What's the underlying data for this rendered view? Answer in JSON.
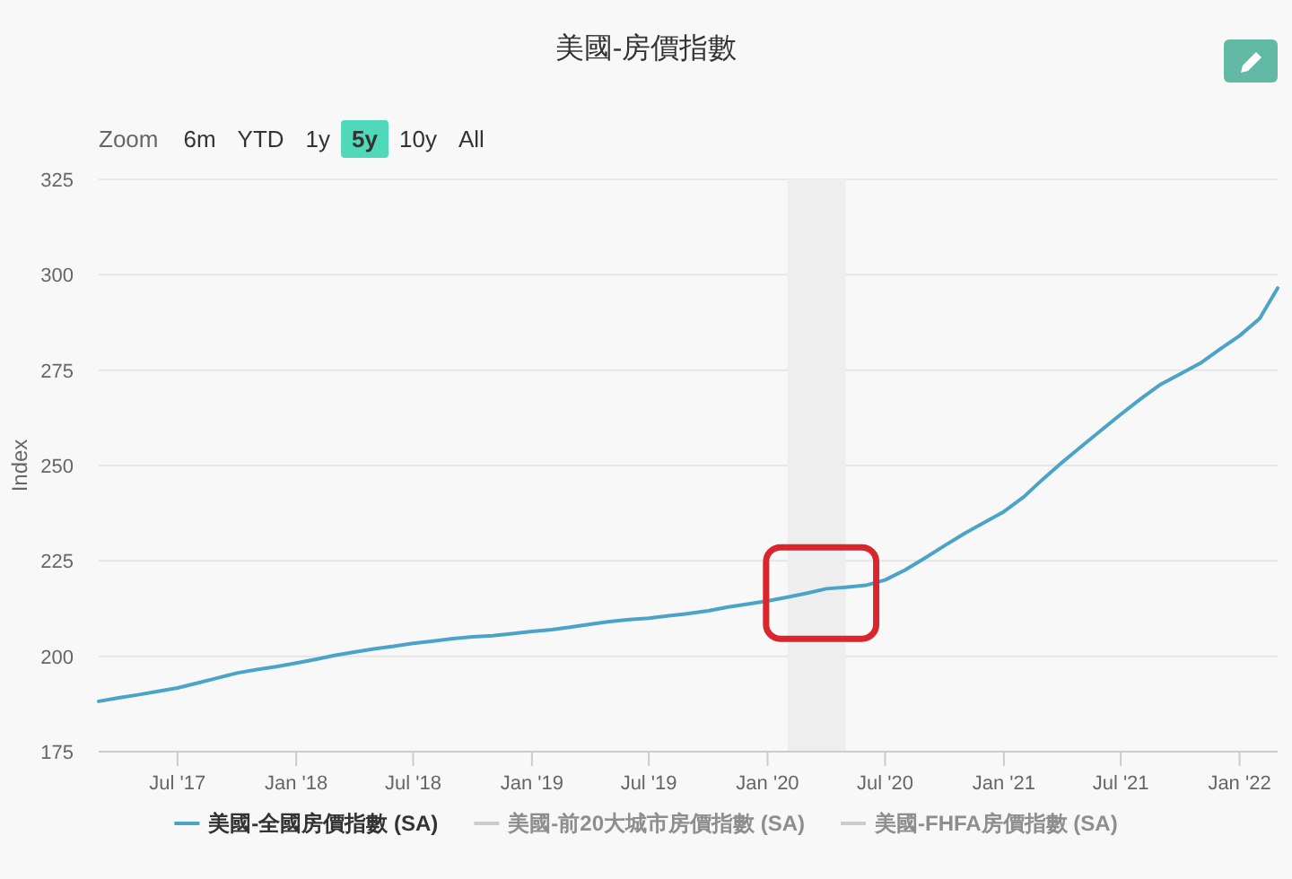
{
  "chart_data": {
    "type": "line",
    "title": "美國-房價指數",
    "ylabel": "Index",
    "annotations": [
      "Zoom",
      "6m",
      "YTD",
      "1y",
      "5y",
      "10y",
      "All"
    ],
    "x": [
      "2017-03",
      "2017-04",
      "2017-05",
      "2017-06",
      "2017-07",
      "2017-08",
      "2017-09",
      "2017-10",
      "2017-11",
      "2017-12",
      "2018-01",
      "2018-02",
      "2018-03",
      "2018-04",
      "2018-05",
      "2018-06",
      "2018-07",
      "2018-08",
      "2018-09",
      "2018-10",
      "2018-11",
      "2018-12",
      "2019-01",
      "2019-02",
      "2019-03",
      "2019-04",
      "2019-05",
      "2019-06",
      "2019-07",
      "2019-08",
      "2019-09",
      "2019-10",
      "2019-11",
      "2019-12",
      "2020-01",
      "2020-02",
      "2020-03",
      "2020-04",
      "2020-05",
      "2020-06",
      "2020-07",
      "2020-08",
      "2020-09",
      "2020-10",
      "2020-11",
      "2020-12",
      "2021-01",
      "2021-02",
      "2021-03",
      "2021-04",
      "2021-05",
      "2021-06",
      "2021-07",
      "2021-08",
      "2021-09",
      "2021-10",
      "2021-11",
      "2021-12",
      "2022-01",
      "2022-02",
      "2022-03"
    ],
    "series": [
      {
        "name": "美國-全國房價指數 (SA)",
        "color": "#4ba3c7",
        "values": [
          188.2,
          189.1,
          189.9,
          190.8,
          191.7,
          193.0,
          194.3,
          195.6,
          196.5,
          197.3,
          198.2,
          199.2,
          200.2,
          201.1,
          201.9,
          202.6,
          203.4,
          204.0,
          204.6,
          205.1,
          205.4,
          205.9,
          206.5,
          207.0,
          207.6,
          208.4,
          209.1,
          209.6,
          210.0,
          210.6,
          211.2,
          211.9,
          212.9,
          213.7,
          214.5,
          215.5,
          216.5,
          217.7,
          218.1,
          218.6,
          220.0,
          222.6,
          225.8,
          229.0,
          232.2,
          235.0,
          237.9,
          241.8,
          246.2,
          250.8,
          255.0,
          259.3,
          263.4,
          267.5,
          271.3,
          274.0,
          276.8,
          280.4,
          284.0,
          288.5,
          296.5
        ]
      },
      {
        "name": "美國-前20大城市房價指數 (SA)",
        "color": "#cccccc",
        "values": [
          null,
          null,
          null,
          null,
          null,
          null,
          null,
          null,
          null,
          null,
          null,
          null,
          null,
          null,
          null,
          null,
          null,
          null,
          null,
          null,
          null,
          null,
          null,
          null,
          null,
          null,
          null,
          null,
          null,
          null,
          null,
          null,
          null,
          null,
          null,
          null,
          null,
          null,
          null,
          null,
          null,
          null,
          null,
          null,
          null,
          null,
          null,
          null,
          null,
          null,
          null,
          null,
          null,
          null,
          null,
          null,
          null,
          null,
          null,
          null,
          null
        ]
      },
      {
        "name": "美國-FHFA房價指數 (SA)",
        "color": "#cccccc",
        "values": [
          null,
          null,
          null,
          null,
          null,
          null,
          null,
          null,
          null,
          null,
          null,
          null,
          null,
          null,
          null,
          null,
          null,
          null,
          null,
          null,
          null,
          null,
          null,
          null,
          null,
          null,
          null,
          null,
          null,
          null,
          null,
          null,
          null,
          null,
          null,
          null,
          null,
          null,
          null,
          null,
          null,
          null,
          null,
          null,
          null,
          null,
          null,
          null,
          null,
          null,
          null,
          null,
          null,
          null,
          null,
          null,
          null,
          null,
          null,
          null,
          null
        ]
      }
    ],
    "xlim": [
      "2017-03",
      "2022-03"
    ],
    "xticks": [
      {
        "value": "2017-07",
        "label": "Jul '17"
      },
      {
        "value": "2018-01",
        "label": "Jan '18"
      },
      {
        "value": "2018-07",
        "label": "Jul '18"
      },
      {
        "value": "2019-01",
        "label": "Jan '19"
      },
      {
        "value": "2019-07",
        "label": "Jul '19"
      },
      {
        "value": "2020-01",
        "label": "Jan '20"
      },
      {
        "value": "2020-07",
        "label": "Jul '20"
      },
      {
        "value": "2021-01",
        "label": "Jan '21"
      },
      {
        "value": "2021-07",
        "label": "Jul '21"
      },
      {
        "value": "2022-01",
        "label": "Jan '22"
      }
    ],
    "ylim": [
      175,
      325
    ],
    "yticks": [
      175,
      200,
      225,
      250,
      275,
      300,
      325
    ],
    "bands": [
      {
        "axis": "x",
        "from": "2020-02",
        "to": "2020-05",
        "color": "#eeeeee"
      }
    ],
    "grid": "y",
    "legend": "bottom"
  }
}
